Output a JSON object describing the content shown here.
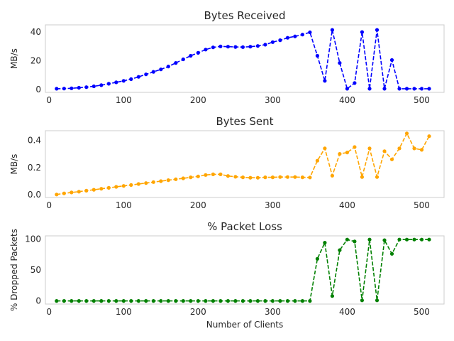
{
  "chart_data": [
    {
      "type": "line",
      "title": "Bytes Received",
      "xlabel": "",
      "ylabel": "MB/s",
      "xlim": [
        -5,
        530
      ],
      "ylim": [
        -2,
        45
      ],
      "xticks": [
        0,
        100,
        200,
        300,
        400,
        500
      ],
      "yticks": [
        0,
        20,
        40
      ],
      "grid": false,
      "series": [
        {
          "color": "#0000ff",
          "line_style": "dashed",
          "marker": "circle",
          "x": [
            10,
            20,
            30,
            40,
            50,
            60,
            70,
            80,
            90,
            100,
            110,
            120,
            130,
            140,
            150,
            160,
            170,
            180,
            190,
            200,
            210,
            220,
            230,
            240,
            250,
            260,
            270,
            280,
            290,
            300,
            310,
            320,
            330,
            340,
            350,
            360,
            370,
            380,
            390,
            400,
            410,
            420,
            430,
            440,
            450,
            460,
            470,
            480,
            490,
            500,
            510
          ],
          "y": [
            0.5,
            0.6,
            0.8,
            1.2,
            1.6,
            2.2,
            3.0,
            4.0,
            5.0,
            6.0,
            7.2,
            8.8,
            10.5,
            12.3,
            14.0,
            16.0,
            18.5,
            21.0,
            23.5,
            25.5,
            27.8,
            29.3,
            30.0,
            29.8,
            29.6,
            29.5,
            29.8,
            30.3,
            31.2,
            33.0,
            34.3,
            36.0,
            37.0,
            38.2,
            39.8,
            23.5,
            6.0,
            41.5,
            18.5,
            0.5,
            4.5,
            40.0,
            0.5,
            41.5,
            0.5,
            20.5,
            0.5,
            0.5,
            0.5,
            0.5,
            0.5
          ]
        }
      ]
    },
    {
      "type": "line",
      "title": "Bytes Sent",
      "xlabel": "",
      "ylabel": "MB/s",
      "xlim": [
        -5,
        530
      ],
      "ylim": [
        -0.02,
        0.47
      ],
      "xticks": [
        0,
        100,
        200,
        300,
        400,
        500
      ],
      "yticks": [
        0.0,
        0.2,
        0.4
      ],
      "ytick_labels": [
        "0.0",
        "0.2",
        "0.4"
      ],
      "grid": false,
      "series": [
        {
          "color": "#ffa500",
          "line_style": "dashed",
          "marker": "circle",
          "x": [
            10,
            20,
            30,
            40,
            50,
            60,
            70,
            80,
            90,
            100,
            110,
            120,
            130,
            140,
            150,
            160,
            170,
            180,
            190,
            200,
            210,
            220,
            230,
            240,
            250,
            260,
            270,
            280,
            290,
            300,
            310,
            320,
            330,
            340,
            350,
            360,
            370,
            380,
            390,
            400,
            410,
            420,
            430,
            440,
            450,
            460,
            470,
            480,
            490,
            500,
            510
          ],
          "y": [
            0.002,
            0.01,
            0.017,
            0.023,
            0.03,
            0.037,
            0.044,
            0.051,
            0.058,
            0.065,
            0.072,
            0.079,
            0.086,
            0.093,
            0.1,
            0.107,
            0.114,
            0.121,
            0.128,
            0.135,
            0.145,
            0.15,
            0.15,
            0.138,
            0.132,
            0.128,
            0.125,
            0.125,
            0.128,
            0.128,
            0.13,
            0.13,
            0.13,
            0.128,
            0.127,
            0.25,
            0.34,
            0.14,
            0.3,
            0.31,
            0.35,
            0.13,
            0.34,
            0.13,
            0.32,
            0.26,
            0.34,
            0.45,
            0.34,
            0.33,
            0.43
          ]
        }
      ]
    },
    {
      "type": "line",
      "title": "% Packet Loss",
      "xlabel": "Number of Clients",
      "ylabel": "% Dropped Packets",
      "xlim": [
        -5,
        530
      ],
      "ylim": [
        -5,
        105
      ],
      "xticks": [
        0,
        100,
        200,
        300,
        400,
        500
      ],
      "yticks": [
        0,
        50,
        100
      ],
      "grid": false,
      "series": [
        {
          "color": "#008000",
          "line_style": "dashed",
          "marker": "circle",
          "x": [
            10,
            20,
            30,
            40,
            50,
            60,
            70,
            80,
            90,
            100,
            110,
            120,
            130,
            140,
            150,
            160,
            170,
            180,
            190,
            200,
            210,
            220,
            230,
            240,
            250,
            260,
            270,
            280,
            290,
            300,
            310,
            320,
            330,
            340,
            350,
            360,
            370,
            380,
            390,
            400,
            410,
            420,
            430,
            440,
            450,
            460,
            470,
            480,
            490,
            500,
            510
          ],
          "y": [
            0,
            0,
            0,
            0,
            0,
            0,
            0,
            0,
            0,
            0,
            0,
            0,
            0,
            0,
            0,
            0,
            0,
            0,
            0,
            0,
            0,
            0,
            0,
            0,
            0,
            0,
            0,
            0,
            0,
            0,
            0,
            0,
            0,
            0,
            0,
            68,
            94,
            8,
            82,
            99,
            96,
            1,
            99,
            1,
            98,
            76,
            99,
            99,
            99,
            99,
            99
          ]
        }
      ]
    }
  ]
}
